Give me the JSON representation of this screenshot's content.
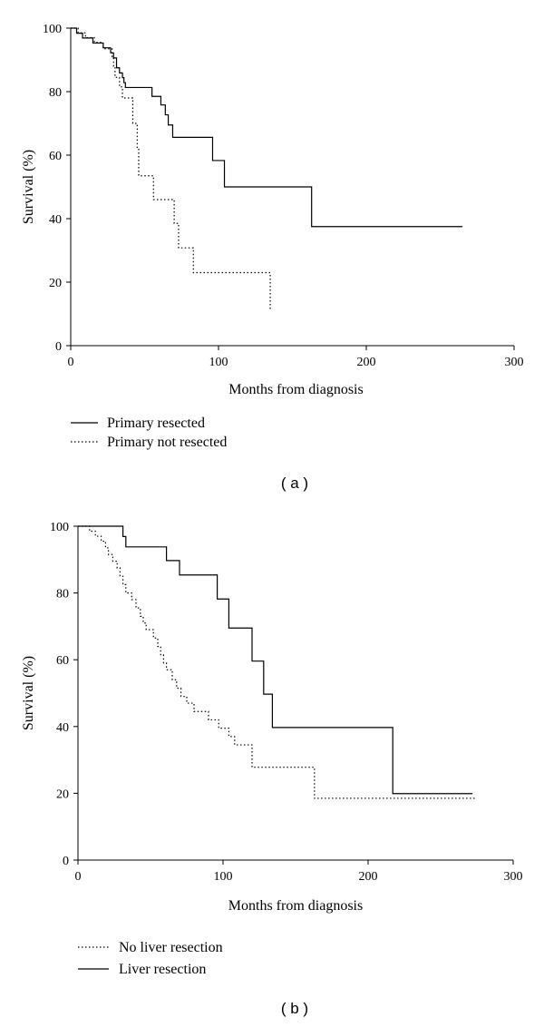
{
  "chart_data": [
    {
      "type": "line",
      "panel_label": "( a )",
      "xlabel": "Months from diagnosis",
      "ylabel": "Survival (%)",
      "xlim": [
        0,
        300
      ],
      "ylim": [
        0,
        100
      ],
      "xticks": [
        0,
        100,
        200,
        300
      ],
      "yticks": [
        0,
        20,
        40,
        60,
        80,
        100
      ],
      "legend_position": "bottom-left",
      "grid": false,
      "series": [
        {
          "name": "Primary resected",
          "style": "solid",
          "steps": [
            [
              0,
              100
            ],
            [
              4,
              98.4
            ],
            [
              8,
              96.9
            ],
            [
              15,
              95.3
            ],
            [
              22,
              93.8
            ],
            [
              27,
              92.2
            ],
            [
              29,
              90.6
            ],
            [
              31,
              87.5
            ],
            [
              33,
              85.9
            ],
            [
              35,
              84.4
            ],
            [
              36,
              82.8
            ],
            [
              37,
              81.3
            ],
            [
              55,
              78.5
            ],
            [
              61,
              75.8
            ],
            [
              64,
              72.7
            ],
            [
              66,
              69.5
            ],
            [
              69,
              65.6
            ],
            [
              96,
              58.3
            ],
            [
              104,
              50.0
            ],
            [
              163,
              37.5
            ],
            [
              265,
              37.5
            ]
          ]
        },
        {
          "name": "Primary not resected",
          "style": "dotted",
          "steps": [
            [
              0,
              100
            ],
            [
              5,
              98.5
            ],
            [
              10,
              97.0
            ],
            [
              16,
              95.5
            ],
            [
              22,
              93.5
            ],
            [
              28,
              91.0
            ],
            [
              29,
              88.0
            ],
            [
              30,
              84.5
            ],
            [
              33,
              81.5
            ],
            [
              35,
              78.0
            ],
            [
              42,
              70.0
            ],
            [
              45,
              62.0
            ],
            [
              46,
              53.5
            ],
            [
              56,
              46.0
            ],
            [
              70,
              38.5
            ],
            [
              73,
              30.8
            ],
            [
              83,
              23.0
            ],
            [
              135,
              11.5
            ]
          ]
        }
      ]
    },
    {
      "type": "line",
      "panel_label": "( b )",
      "xlabel": "Months from diagnosis",
      "ylabel": "Survival (%)",
      "xlim": [
        0,
        300
      ],
      "ylim": [
        0,
        100
      ],
      "xticks": [
        0,
        100,
        200,
        300
      ],
      "yticks": [
        0,
        20,
        40,
        60,
        80,
        100
      ],
      "legend_position": "bottom-left",
      "grid": false,
      "series": [
        {
          "name": "No liver resection",
          "style": "dotted",
          "steps": [
            [
              0,
              100
            ],
            [
              8,
              98.5
            ],
            [
              12,
              97.0
            ],
            [
              16,
              95.5
            ],
            [
              19,
              93.5
            ],
            [
              21,
              91.5
            ],
            [
              24,
              89.5
            ],
            [
              27,
              87.5
            ],
            [
              29,
              85.0
            ],
            [
              31,
              82.5
            ],
            [
              33,
              80.0
            ],
            [
              37,
              78.0
            ],
            [
              40,
              75.5
            ],
            [
              43,
              73.0
            ],
            [
              45,
              71.0
            ],
            [
              47,
              69.0
            ],
            [
              52,
              66.5
            ],
            [
              55,
              64.0
            ],
            [
              57,
              61.5
            ],
            [
              59,
              59.0
            ],
            [
              61,
              57.0
            ],
            [
              65,
              54.0
            ],
            [
              68,
              51.5
            ],
            [
              71,
              49.0
            ],
            [
              75,
              47.0
            ],
            [
              80,
              44.5
            ],
            [
              90,
              42.0
            ],
            [
              97,
              39.5
            ],
            [
              104,
              37.0
            ],
            [
              108,
              34.5
            ],
            [
              120,
              27.8
            ],
            [
              163,
              18.5
            ],
            [
              275,
              18.5
            ]
          ]
        },
        {
          "name": "Liver resection",
          "style": "solid",
          "steps": [
            [
              0,
              100
            ],
            [
              31,
              96.9
            ],
            [
              33,
              93.8
            ],
            [
              61,
              89.7
            ],
            [
              70,
              85.4
            ],
            [
              96,
              78.2
            ],
            [
              104,
              69.5
            ],
            [
              120,
              59.6
            ],
            [
              128,
              49.7
            ],
            [
              134,
              39.7
            ],
            [
              217,
              19.9
            ],
            [
              272,
              19.9
            ]
          ]
        }
      ]
    }
  ]
}
